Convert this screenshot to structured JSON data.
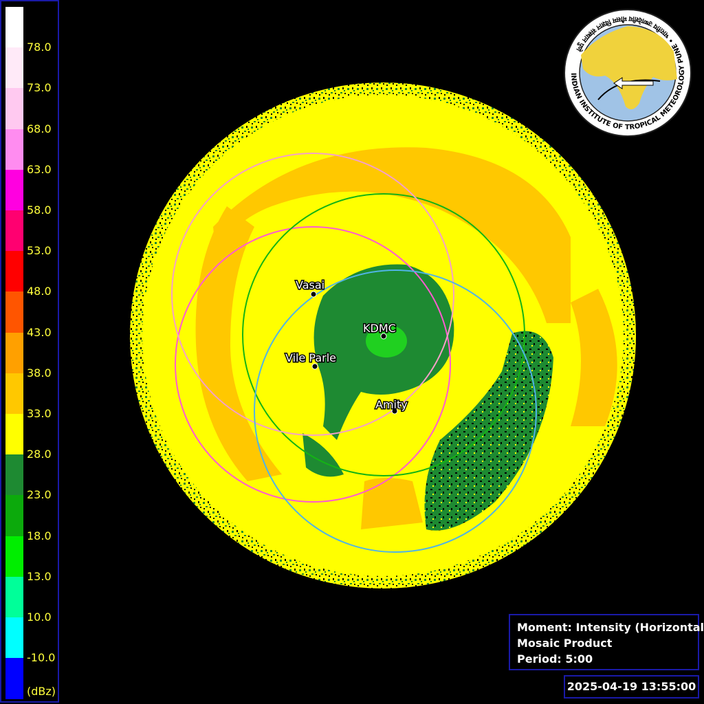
{
  "legend": {
    "unit": "(dBz)",
    "labels": [
      "78.0",
      "73.0",
      "68.0",
      "63.0",
      "58.0",
      "53.0",
      "48.0",
      "43.0",
      "38.0",
      "33.0",
      "28.0",
      "23.0",
      "18.0",
      "13.0",
      "10.0",
      "-10.0"
    ],
    "colors": [
      "#ffffff",
      "#ffeaf8",
      "#ffc9f0",
      "#ff8cf0",
      "#ff00e0",
      "#ff0070",
      "#ff0000",
      "#ff5500",
      "#ffa000",
      "#ffc800",
      "#ffff00",
      "#1e8a32",
      "#0caa0c",
      "#00ee00",
      "#00ff99",
      "#00ffff",
      "#0000ff"
    ]
  },
  "info": {
    "moment": "Moment: Intensity (Horizontal)",
    "product": "Mosaic Product",
    "period": "Period: 5:00"
  },
  "timestamp": "2025-04-19 13:55:00",
  "stations": [
    {
      "name": "Vasai",
      "ring_color": "#ff5ad2"
    },
    {
      "name": "KDMC",
      "ring_color": "#14b414"
    },
    {
      "name": "Vile Parle",
      "ring_color": "#f5a0c8"
    },
    {
      "name": "Amity",
      "ring_color": "#50b4e6"
    }
  ],
  "logo": {
    "text": "INDIAN INSTITUTE OF TROPICAL METEOROLOGY PUNE • भारतीय उष्णदेशीय मौसम विज्ञान संस्थान पुणे",
    "colors": {
      "land": "#f0d23c",
      "sea": "#a0c3e6",
      "ring": "#ffffff"
    }
  },
  "reflectivity_colors": {
    "green": "#1e8a32",
    "yellow": "#ffff00",
    "orange": "#ffc800",
    "light_green": "#20d020"
  }
}
